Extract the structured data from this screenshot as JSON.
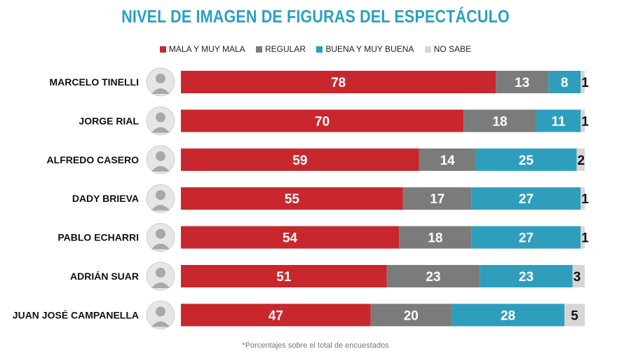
{
  "chart_data": {
    "type": "bar",
    "orientation": "horizontal",
    "stacked": true,
    "title": "NIVEL DE IMAGEN DE FIGURAS DEL ESPECTÁCULO",
    "footnote": "*Porcentajes sobre el total de encuestados",
    "legend_position": "top",
    "categories": [
      "MARCELO TINELLI",
      "JORGE RIAL",
      "ALFREDO CASERO",
      "DADY BRIEVA",
      "PABLO ECHARRI",
      "ADRIÁN SUAR",
      "JUAN JOSÉ CAMPANELLA"
    ],
    "series": [
      {
        "name": "MALA Y MUY MALA",
        "color": "#c8272d",
        "values": [
          78,
          70,
          59,
          55,
          54,
          51,
          47
        ]
      },
      {
        "name": "REGULAR",
        "color": "#7b7b7b",
        "values": [
          13,
          18,
          14,
          17,
          18,
          23,
          20
        ]
      },
      {
        "name": "BUENA Y MUY BUENA",
        "color": "#2f9ebd",
        "values": [
          8,
          11,
          25,
          27,
          27,
          23,
          28
        ]
      },
      {
        "name": "NO SABE",
        "color": "#d6d6d6",
        "values": [
          1,
          1,
          2,
          1,
          1,
          3,
          5
        ]
      }
    ]
  }
}
